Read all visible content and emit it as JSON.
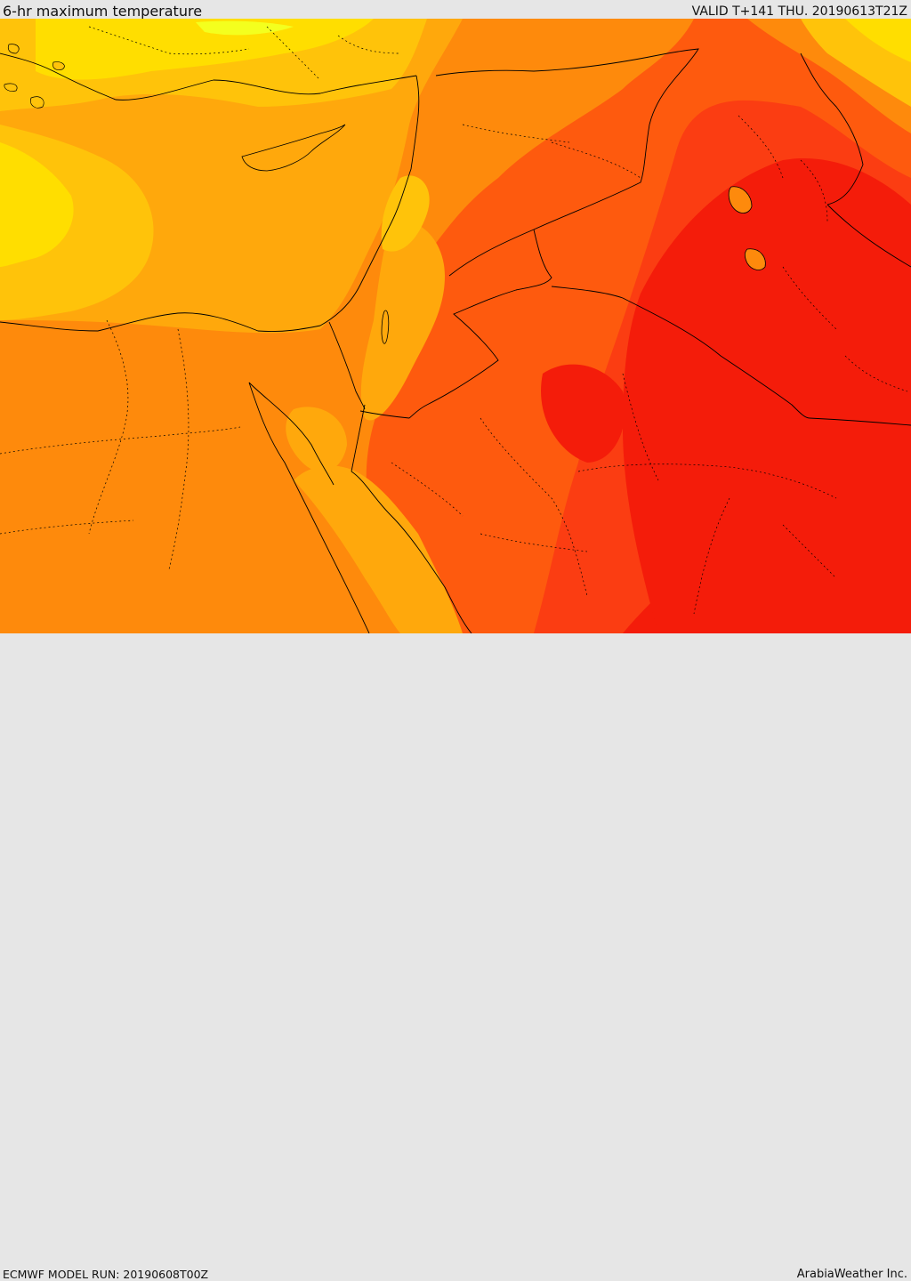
{
  "header": {
    "title": "6-hr maximum temperature",
    "valid": "VALID T+141 THU. 20190613T21Z"
  },
  "footer": {
    "model_run": "ECMWF MODEL RUN: 20190608T00Z",
    "credit": "ArabiaWeather Inc."
  },
  "palette": {
    "very_hot": "#f41c0a",
    "hot": "#fb3d12",
    "warm_red": "#fe5a0e",
    "orange": "#fe8a0c",
    "amber": "#ffa80c",
    "gold": "#ffc30a",
    "yellow": "#ffde00",
    "pale_yellow": "#f4ff1e",
    "boundary_line": "#000000"
  }
}
